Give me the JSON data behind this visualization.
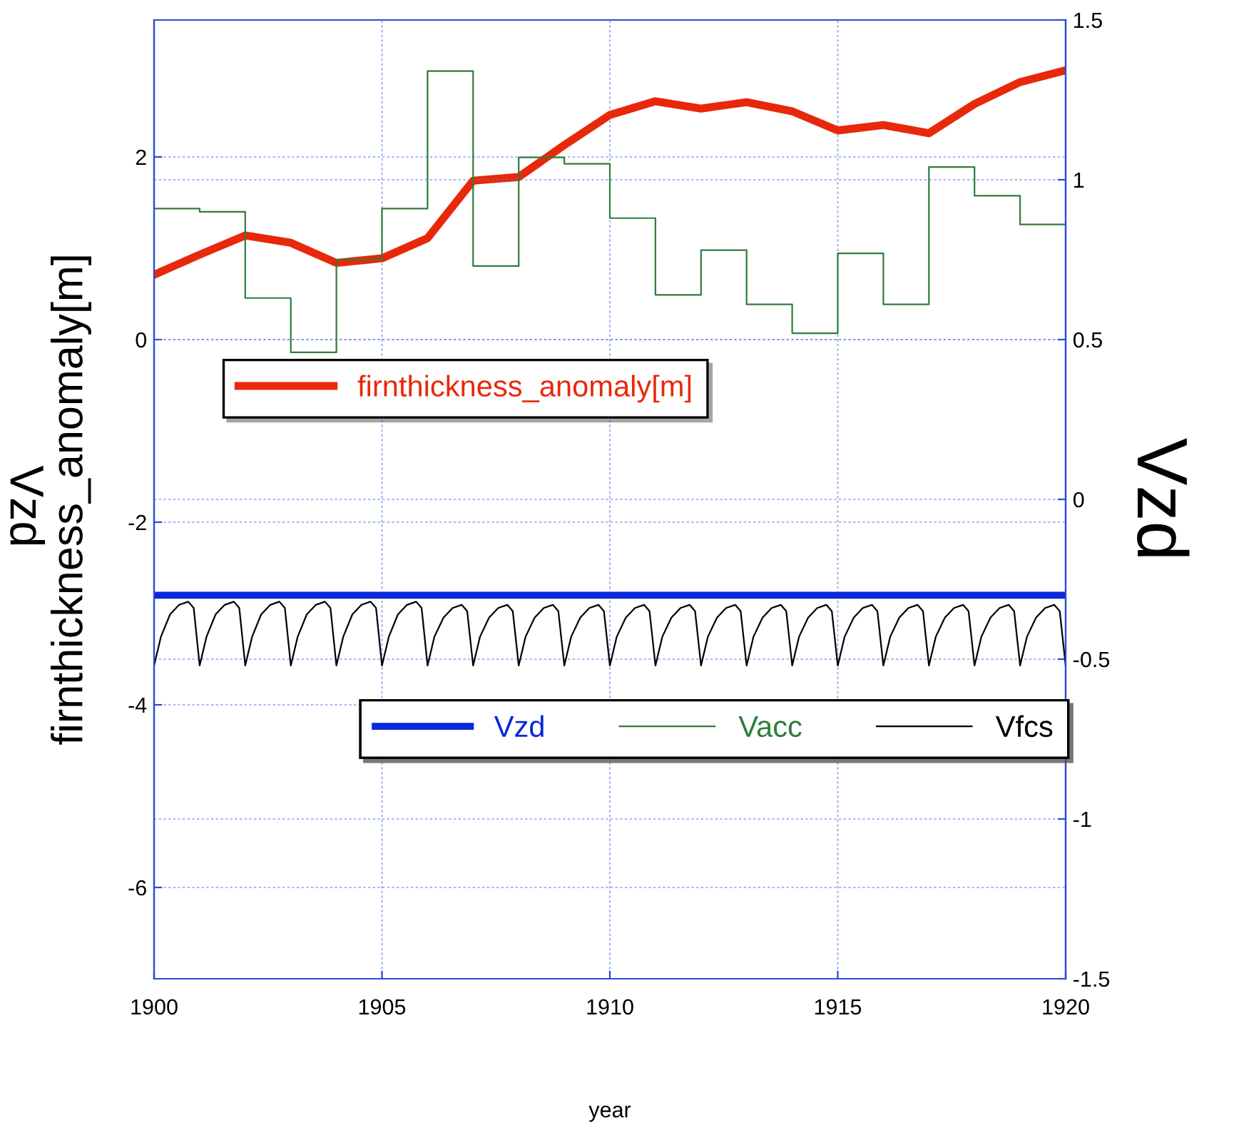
{
  "chart_data": {
    "type": "line",
    "xlabel": "year",
    "ylabel": "firnthickness_anomaly[m]",
    "y2label": "Vzd",
    "annotations": [
      "Vzd"
    ],
    "xlim": [
      1900,
      1920
    ],
    "xticks": [
      1900,
      1905,
      1910,
      1915,
      1920
    ],
    "ylim": [
      -7,
      3.5
    ],
    "yticks": [
      -6,
      -4,
      -2,
      0,
      2
    ],
    "y2lim": [
      -1.5,
      1.5
    ],
    "y2ticks": [
      -1.5,
      -1,
      -0.5,
      0,
      0.5,
      1,
      1.5
    ],
    "grid": true,
    "legend": "center",
    "marker": "none",
    "line_style": "solid",
    "series": [
      {
        "name": "firnthickness_anomaly[m]",
        "color": "#e8280a",
        "x": [
          1900,
          1901,
          1902,
          1903,
          1904,
          1905,
          1906,
          1907,
          1908,
          1909,
          1910,
          1911,
          1912,
          1913,
          1914,
          1915,
          1916,
          1917,
          1918,
          1919,
          1920
        ],
        "values": [
          0.71,
          0.93,
          1.14,
          1.06,
          0.84,
          0.89,
          1.11,
          1.74,
          1.78,
          2.13,
          2.46,
          2.61,
          2.53,
          2.6,
          2.5,
          2.29,
          2.35,
          2.26,
          2.58,
          2.82,
          2.95
        ]
      },
      {
        "name": "Vzd",
        "type": "line",
        "axis": "y2",
        "color": "#0a28d8",
        "x": [
          1900,
          1920
        ],
        "values": [
          -0.3,
          -0.3
        ]
      },
      {
        "name": "Vacc",
        "type": "step",
        "axis": "y2",
        "color": "#2e7d3e",
        "x": [
          1900,
          1901,
          1902,
          1903,
          1904,
          1905,
          1906,
          1907,
          1908,
          1909,
          1910,
          1911,
          1912,
          1913,
          1914,
          1915,
          1916,
          1917,
          1918,
          1919,
          1920
        ],
        "values": [
          0.91,
          0.9,
          0.63,
          0.46,
          0.75,
          0.91,
          1.34,
          0.73,
          1.07,
          1.05,
          0.88,
          0.64,
          0.78,
          0.61,
          0.52,
          0.77,
          0.61,
          1.04,
          0.95,
          0.86,
          0.86
        ]
      },
      {
        "name": "Vfcs",
        "type": "line",
        "axis": "y2",
        "color": "#000000",
        "x": [
          1900,
          1900.15,
          1900.35,
          1900.55,
          1900.75,
          1900.87,
          1901,
          1901.15,
          1901.35,
          1901.55,
          1901.75,
          1901.87,
          1902,
          1902.15,
          1902.35,
          1902.55,
          1902.75,
          1902.87,
          1903,
          1903.15,
          1903.35,
          1903.55,
          1903.75,
          1903.87,
          1904,
          1904.15,
          1904.35,
          1904.55,
          1904.75,
          1904.87,
          1905,
          1905.15,
          1905.35,
          1905.55,
          1905.75,
          1905.87,
          1906,
          1906.15,
          1906.35,
          1906.55,
          1906.75,
          1906.87,
          1907,
          1907.15,
          1907.35,
          1907.55,
          1907.75,
          1907.87,
          1908,
          1908.15,
          1908.35,
          1908.55,
          1908.75,
          1908.87,
          1909,
          1909.15,
          1909.35,
          1909.55,
          1909.75,
          1909.87,
          1910,
          1910.15,
          1910.35,
          1910.55,
          1910.75,
          1910.87,
          1911,
          1911.15,
          1911.35,
          1911.55,
          1911.75,
          1911.87,
          1912,
          1912.15,
          1912.35,
          1912.55,
          1912.75,
          1912.87,
          1913,
          1913.15,
          1913.35,
          1913.55,
          1913.75,
          1913.87,
          1914,
          1914.15,
          1914.35,
          1914.55,
          1914.75,
          1914.87,
          1915,
          1915.15,
          1915.35,
          1915.55,
          1915.75,
          1915.87,
          1916,
          1916.15,
          1916.35,
          1916.55,
          1916.75,
          1916.87,
          1917,
          1917.15,
          1917.35,
          1917.55,
          1917.75,
          1917.87,
          1918,
          1918.15,
          1918.35,
          1918.55,
          1918.75,
          1918.87,
          1919,
          1919.15,
          1919.35,
          1919.55,
          1919.75,
          1919.87,
          1920
        ],
        "values": [
          -0.52,
          -0.43,
          -0.36,
          -0.33,
          -0.32,
          -0.34,
          -0.52,
          -0.43,
          -0.36,
          -0.33,
          -0.32,
          -0.34,
          -0.52,
          -0.43,
          -0.36,
          -0.33,
          -0.32,
          -0.34,
          -0.52,
          -0.43,
          -0.36,
          -0.33,
          -0.32,
          -0.34,
          -0.52,
          -0.43,
          -0.36,
          -0.33,
          -0.32,
          -0.34,
          -0.52,
          -0.43,
          -0.36,
          -0.33,
          -0.32,
          -0.34,
          -0.52,
          -0.43,
          -0.37,
          -0.34,
          -0.33,
          -0.35,
          -0.52,
          -0.43,
          -0.37,
          -0.34,
          -0.33,
          -0.35,
          -0.52,
          -0.43,
          -0.37,
          -0.34,
          -0.33,
          -0.35,
          -0.52,
          -0.43,
          -0.37,
          -0.34,
          -0.33,
          -0.35,
          -0.52,
          -0.43,
          -0.37,
          -0.34,
          -0.33,
          -0.35,
          -0.52,
          -0.43,
          -0.37,
          -0.34,
          -0.33,
          -0.35,
          -0.52,
          -0.43,
          -0.37,
          -0.34,
          -0.33,
          -0.35,
          -0.52,
          -0.43,
          -0.37,
          -0.34,
          -0.33,
          -0.35,
          -0.52,
          -0.43,
          -0.37,
          -0.34,
          -0.33,
          -0.35,
          -0.52,
          -0.43,
          -0.37,
          -0.34,
          -0.33,
          -0.35,
          -0.52,
          -0.43,
          -0.37,
          -0.34,
          -0.33,
          -0.35,
          -0.52,
          -0.43,
          -0.37,
          -0.34,
          -0.33,
          -0.35,
          -0.52,
          -0.43,
          -0.37,
          -0.34,
          -0.33,
          -0.35,
          -0.52,
          -0.43,
          -0.37,
          -0.34,
          -0.33,
          -0.35,
          -0.52
        ]
      }
    ]
  }
}
